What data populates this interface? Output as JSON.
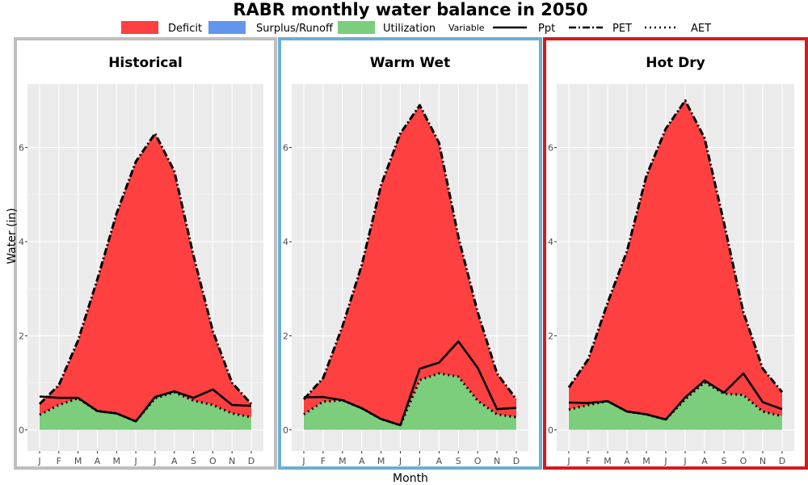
{
  "chart_data": {
    "type": "area",
    "title": "RABR monthly water balance in 2050",
    "xlabel": "Month",
    "ylabel": "Water (in)",
    "ylim": [
      -0.45,
      7.35
    ],
    "yticks": [
      0,
      2,
      4,
      6
    ],
    "categories": [
      "J",
      "F",
      "M",
      "A",
      "M",
      "J",
      "J",
      "A",
      "S",
      "O",
      "N",
      "D"
    ],
    "legend": {
      "position": "top",
      "fill_items": [
        {
          "label": "Deficit",
          "color": "#ff4040"
        },
        {
          "label": "Surplus/Runoff",
          "color": "#6495ed"
        },
        {
          "label": "Utilization",
          "color": "#7ccd7c"
        }
      ],
      "line_title": "Variable",
      "line_items": [
        {
          "label": "Ppt",
          "style": "solid"
        },
        {
          "label": "PET",
          "style": "longdash"
        },
        {
          "label": "AET",
          "style": "dotted"
        }
      ]
    },
    "panels": [
      {
        "title": "Historical",
        "border_color": "#bebebe",
        "series": [
          {
            "name": "Ppt",
            "values": [
              0.71,
              0.68,
              0.68,
              0.4,
              0.35,
              0.18,
              0.7,
              0.82,
              0.68,
              0.86,
              0.53,
              0.51
            ]
          },
          {
            "name": "PET",
            "values": [
              0.55,
              0.95,
              1.9,
              3.2,
              4.6,
              5.7,
              6.3,
              5.5,
              3.7,
              2.1,
              1.0,
              0.55
            ]
          },
          {
            "name": "AET",
            "values": [
              0.32,
              0.53,
              0.67,
              0.4,
              0.35,
              0.18,
              0.67,
              0.8,
              0.62,
              0.53,
              0.35,
              0.27
            ]
          }
        ]
      },
      {
        "title": "Warm Wet",
        "border_color": "#6baed6",
        "series": [
          {
            "name": "Ppt",
            "values": [
              0.69,
              0.7,
              0.63,
              0.46,
              0.23,
              0.1,
              1.3,
              1.43,
              1.88,
              1.32,
              0.44,
              0.47
            ]
          },
          {
            "name": "PET",
            "values": [
              0.65,
              1.1,
              2.2,
              3.5,
              5.2,
              6.3,
              6.9,
              6.1,
              4.1,
              2.5,
              1.2,
              0.65
            ]
          },
          {
            "name": "AET",
            "values": [
              0.33,
              0.6,
              0.63,
              0.46,
              0.23,
              0.1,
              1.06,
              1.2,
              1.13,
              0.62,
              0.33,
              0.27
            ]
          }
        ]
      },
      {
        "title": "Hot Dry",
        "border_color": "#d7191c",
        "series": [
          {
            "name": "Ppt",
            "values": [
              0.58,
              0.57,
              0.61,
              0.39,
              0.33,
              0.22,
              0.69,
              1.05,
              0.79,
              1.2,
              0.59,
              0.44
            ]
          },
          {
            "name": "PET",
            "values": [
              0.9,
              1.5,
              2.7,
              3.8,
              5.4,
              6.4,
              7.0,
              6.2,
              4.4,
              2.5,
              1.3,
              0.8
            ]
          },
          {
            "name": "AET",
            "values": [
              0.43,
              0.53,
              0.61,
              0.39,
              0.33,
              0.22,
              0.65,
              1.01,
              0.77,
              0.74,
              0.39,
              0.29
            ]
          }
        ]
      }
    ]
  }
}
